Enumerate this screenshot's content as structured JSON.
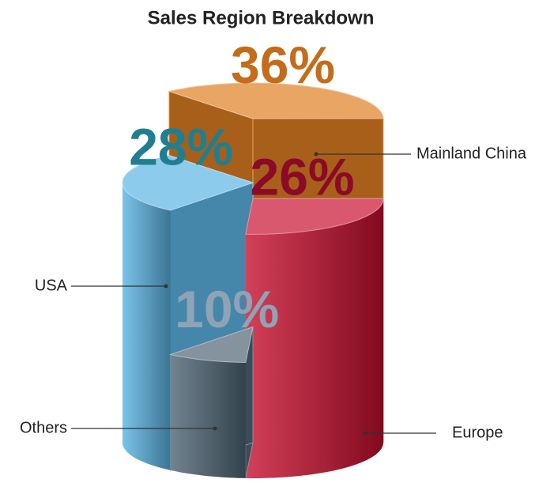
{
  "chart_data": {
    "type": "pie",
    "title": "Sales Region Breakdown",
    "categories": [
      "Mainland China",
      "Europe",
      "Others",
      "USA"
    ],
    "values": [
      36,
      26,
      10,
      28
    ],
    "value_labels": [
      "36%",
      "26%",
      "10%",
      "28%"
    ],
    "colors": [
      "#e07f22",
      "#c8102e",
      "#4f6575",
      "#5ab4e4"
    ],
    "label_colors": [
      "#c46c1a",
      "#8b0a28",
      "#8fa3b5",
      "#1f7f90"
    ]
  }
}
